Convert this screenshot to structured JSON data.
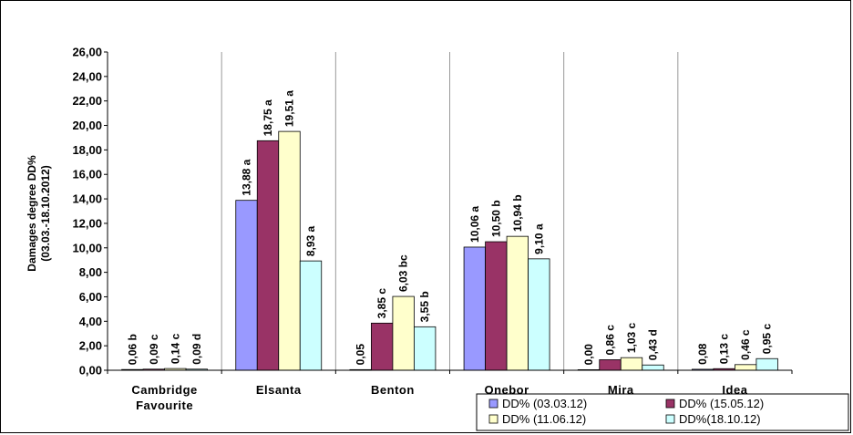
{
  "chart_data": {
    "type": "bar",
    "title": "",
    "xlabel": "",
    "ylabel_lines": [
      "Damages degree DD%",
      "(03.03.-18.10.2012)"
    ],
    "ylim": [
      0,
      26
    ],
    "ytick_labels": [
      "0,00",
      "2,00",
      "4,00",
      "6,00",
      "8,00",
      "10,00",
      "12,00",
      "14,00",
      "16,00",
      "18,00",
      "20,00",
      "22,00",
      "24,00",
      "26,00"
    ],
    "grid": "vertical category separators only",
    "legend_position": "bottom-right",
    "categories": [
      {
        "lines": [
          "Cambridge",
          "Favourite"
        ]
      },
      {
        "lines": [
          "Elsanta"
        ]
      },
      {
        "lines": [
          "Benton"
        ]
      },
      {
        "lines": [
          "Onebor"
        ]
      },
      {
        "lines": [
          "Mira"
        ]
      },
      {
        "lines": [
          "Idea"
        ]
      }
    ],
    "series": [
      {
        "name": "DD% (03.03.12)",
        "color": "#9999ff",
        "values": [
          0.06,
          13.88,
          0.05,
          10.06,
          0.0,
          0.08
        ],
        "labels": [
          "0,06 b",
          "13,88 a",
          "0,05",
          "10,06 a",
          "0,00",
          "0,08"
        ]
      },
      {
        "name": "DD% (15.05.12)",
        "color": "#993366",
        "values": [
          0.09,
          18.75,
          3.85,
          10.5,
          0.86,
          0.13
        ],
        "labels": [
          "0,09 c",
          "18,75 a",
          "3,85 c",
          "10,50 b",
          "0,86 c",
          "0,13 c"
        ]
      },
      {
        "name": "DD% (11.06.12)",
        "color": "#ffffcc",
        "values": [
          0.14,
          19.51,
          6.03,
          10.94,
          1.03,
          0.46
        ],
        "labels": [
          "0,14 c",
          "19,51 a",
          "6,03 bc",
          "10,94 b",
          "1,03 c",
          "0,46 c"
        ]
      },
      {
        "name": "DD%(18.10.12)",
        "color": "#ccffff",
        "values": [
          0.09,
          8.93,
          3.55,
          9.1,
          0.43,
          0.95
        ],
        "labels": [
          "0,09 d",
          "8,93 a",
          "3,55 b",
          "9,10 a",
          "0,43 d",
          "0,95 c"
        ]
      }
    ]
  }
}
